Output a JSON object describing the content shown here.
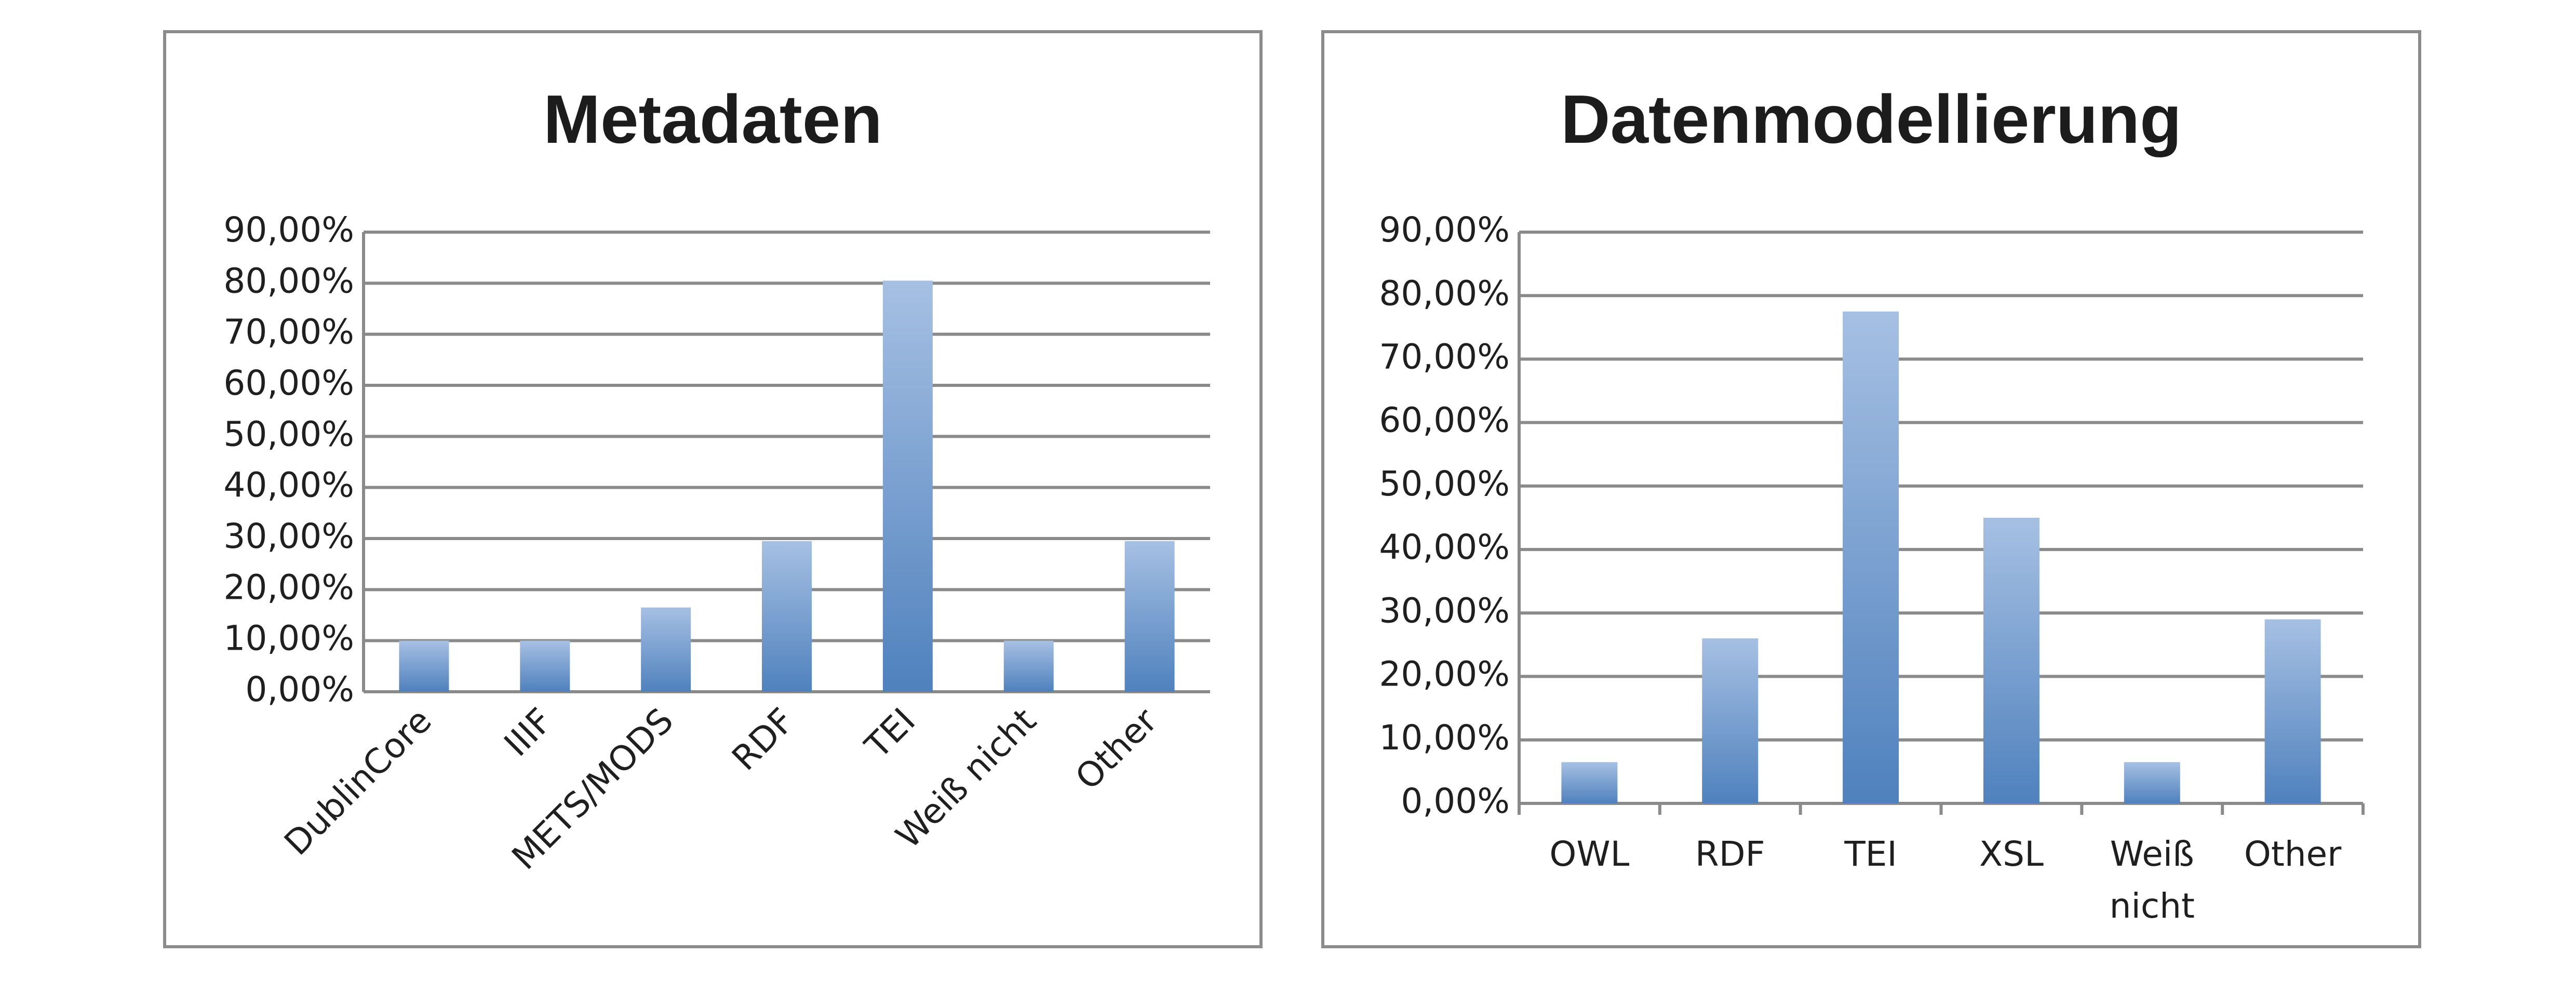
{
  "chart_data": [
    {
      "type": "bar",
      "title": "Metadaten",
      "categories": [
        "DublinCore",
        "IIIF",
        "METS/MODS",
        "RDF",
        "TEI",
        "Weiß nicht",
        "Other"
      ],
      "values": [
        10.0,
        10.0,
        16.5,
        29.5,
        80.5,
        10.0,
        29.5
      ],
      "ylim": [
        0,
        90
      ],
      "y_ticks": [
        "0,00%",
        "10,00%",
        "20,00%",
        "30,00%",
        "40,00%",
        "50,00%",
        "60,00%",
        "70,00%",
        "80,00%",
        "90,00%"
      ],
      "grid": true,
      "category_label_rotation": -45,
      "bar_color": "#4f81bd"
    },
    {
      "type": "bar",
      "title": "Datenmodellierung",
      "categories": [
        "OWL",
        "RDF",
        "TEI",
        "XSL",
        "Weiß nicht",
        "Other"
      ],
      "values": [
        6.5,
        26.0,
        77.5,
        45.0,
        6.5,
        29.0
      ],
      "ylim": [
        0,
        90
      ],
      "y_ticks": [
        "0,00%",
        "10,00%",
        "20,00%",
        "30,00%",
        "40,00%",
        "50,00%",
        "60,00%",
        "70,00%",
        "80,00%",
        "90,00%"
      ],
      "grid": true,
      "category_label_rotation": 0,
      "bar_color": "#4f81bd"
    }
  ]
}
